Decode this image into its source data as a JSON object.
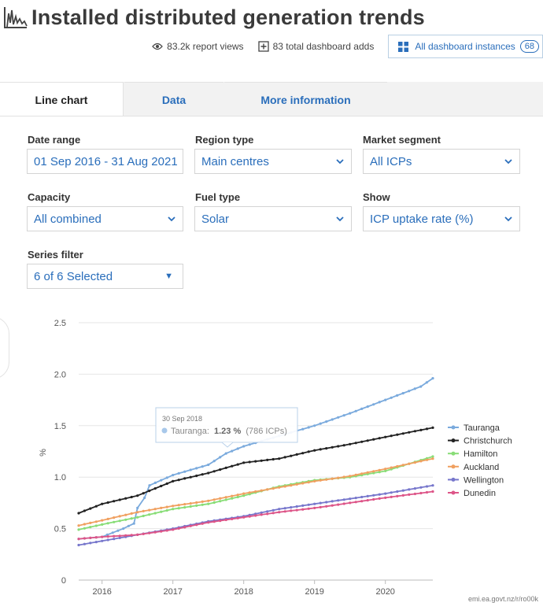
{
  "header": {
    "title": "Installed distributed generation trends",
    "views": "83.2k report views",
    "adds": "83 total dashboard adds",
    "instances_label": "All dashboard instances",
    "instances_count": "68"
  },
  "tabs": [
    {
      "label": "Line chart"
    },
    {
      "label": "Data"
    },
    {
      "label": "More information"
    }
  ],
  "filters": {
    "date_range": {
      "label": "Date range",
      "value": "01 Sep 2016 - 31 Aug 2021"
    },
    "region_type": {
      "label": "Region type",
      "value": "Main centres"
    },
    "market_segment": {
      "label": "Market segment",
      "value": "All ICPs"
    },
    "capacity": {
      "label": "Capacity",
      "value": "All combined"
    },
    "fuel_type": {
      "label": "Fuel type",
      "value": "Solar"
    },
    "show": {
      "label": "Show",
      "value": "ICP uptake rate (%)"
    },
    "series_filter": {
      "label": "Series filter",
      "value": "6 of 6 Selected"
    }
  },
  "tooltip": {
    "date": "30 Sep 2018",
    "series": "Tauranga:",
    "value": "1.23 %",
    "detail": "(786 ICPs)"
  },
  "source": "emi.ea.govt.nz/r/ro00k",
  "chart_data": {
    "type": "line",
    "ylabel": "%",
    "ylim": [
      0,
      2.5
    ],
    "yticks": [
      0,
      0.5,
      1.0,
      1.5,
      2.0,
      2.5
    ],
    "ytick_labels": [
      "0",
      "0.5",
      "1.0",
      "1.5",
      "2.0",
      "2.5"
    ],
    "xlim": [
      2015.67,
      2020.67
    ],
    "xticks": [
      2016,
      2017,
      2018,
      2019,
      2020
    ],
    "xtick_labels": [
      "2016",
      "2017",
      "2018",
      "2019",
      "2020"
    ],
    "grid": true,
    "legend": "right",
    "series": [
      {
        "name": "Tauranga",
        "color": "#7aaadd",
        "points": [
          [
            2015.67,
            0.4
          ],
          [
            2016.0,
            0.42
          ],
          [
            2016.3,
            0.5
          ],
          [
            2016.45,
            0.55
          ],
          [
            2016.5,
            0.7
          ],
          [
            2016.6,
            0.8
          ],
          [
            2016.67,
            0.92
          ],
          [
            2017.0,
            1.02
          ],
          [
            2017.5,
            1.12
          ],
          [
            2017.75,
            1.23
          ],
          [
            2018.0,
            1.3
          ],
          [
            2018.5,
            1.4
          ],
          [
            2019.0,
            1.5
          ],
          [
            2019.5,
            1.62
          ],
          [
            2020.0,
            1.75
          ],
          [
            2020.5,
            1.88
          ],
          [
            2020.67,
            1.96
          ]
        ]
      },
      {
        "name": "Christchurch",
        "color": "#222222",
        "points": [
          [
            2015.67,
            0.65
          ],
          [
            2016.0,
            0.74
          ],
          [
            2016.5,
            0.82
          ],
          [
            2017.0,
            0.96
          ],
          [
            2017.5,
            1.04
          ],
          [
            2018.0,
            1.14
          ],
          [
            2018.5,
            1.18
          ],
          [
            2019.0,
            1.26
          ],
          [
            2019.5,
            1.32
          ],
          [
            2020.0,
            1.39
          ],
          [
            2020.67,
            1.48
          ]
        ]
      },
      {
        "name": "Hamilton",
        "color": "#88dd77",
        "points": [
          [
            2015.67,
            0.49
          ],
          [
            2016.0,
            0.54
          ],
          [
            2016.5,
            0.61
          ],
          [
            2017.0,
            0.69
          ],
          [
            2017.5,
            0.74
          ],
          [
            2018.0,
            0.82
          ],
          [
            2018.5,
            0.91
          ],
          [
            2019.0,
            0.97
          ],
          [
            2019.5,
            1.0
          ],
          [
            2020.0,
            1.06
          ],
          [
            2020.67,
            1.2
          ]
        ]
      },
      {
        "name": "Auckland",
        "color": "#f0a060",
        "points": [
          [
            2015.67,
            0.53
          ],
          [
            2016.0,
            0.58
          ],
          [
            2016.5,
            0.66
          ],
          [
            2017.0,
            0.72
          ],
          [
            2017.5,
            0.77
          ],
          [
            2018.0,
            0.84
          ],
          [
            2018.5,
            0.9
          ],
          [
            2019.0,
            0.96
          ],
          [
            2019.5,
            1.01
          ],
          [
            2020.0,
            1.08
          ],
          [
            2020.67,
            1.18
          ]
        ]
      },
      {
        "name": "Wellington",
        "color": "#7777cc",
        "points": [
          [
            2015.67,
            0.34
          ],
          [
            2016.0,
            0.38
          ],
          [
            2016.5,
            0.44
          ],
          [
            2017.0,
            0.5
          ],
          [
            2017.5,
            0.57
          ],
          [
            2018.0,
            0.62
          ],
          [
            2018.5,
            0.69
          ],
          [
            2019.0,
            0.74
          ],
          [
            2019.5,
            0.79
          ],
          [
            2020.0,
            0.84
          ],
          [
            2020.67,
            0.92
          ]
        ]
      },
      {
        "name": "Dunedin",
        "color": "#dd5588",
        "points": [
          [
            2015.67,
            0.4
          ],
          [
            2016.0,
            0.42
          ],
          [
            2016.5,
            0.44
          ],
          [
            2017.0,
            0.49
          ],
          [
            2017.5,
            0.56
          ],
          [
            2018.0,
            0.61
          ],
          [
            2018.5,
            0.66
          ],
          [
            2019.0,
            0.7
          ],
          [
            2019.5,
            0.75
          ],
          [
            2020.0,
            0.8
          ],
          [
            2020.67,
            0.86
          ]
        ]
      }
    ]
  }
}
